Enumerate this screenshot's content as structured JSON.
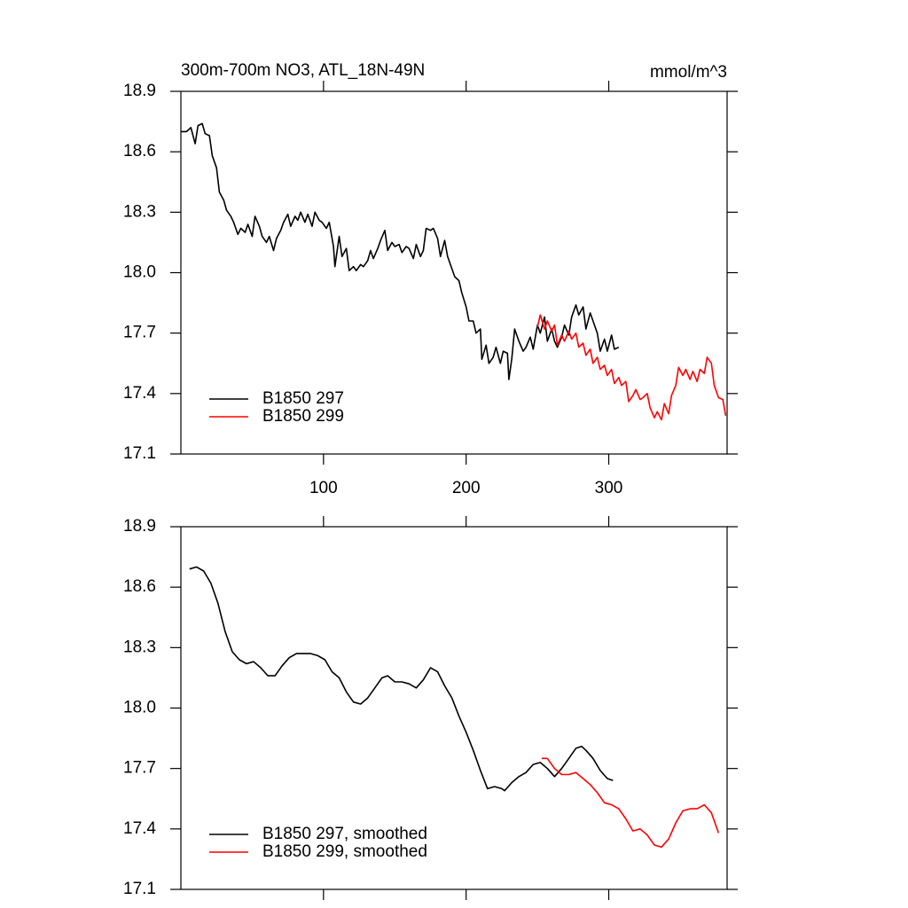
{
  "chart_data": [
    {
      "type": "line",
      "title": "300m-700m NO3, ATL_18N-49N",
      "units": "mmol/m^3",
      "xlim": [
        0,
        383
      ],
      "xticks": [
        100,
        200,
        300
      ],
      "ylim": [
        17.1,
        18.9
      ],
      "yticks": [
        17.1,
        17.4,
        17.7,
        {
          "value": 18,
          "label": "18.0"
        },
        18.3,
        18.6,
        18.9
      ],
      "legend": "bottom-left",
      "series": [
        {
          "name": "B1850 297",
          "color": "#000000",
          "x": [
            0,
            4,
            7,
            10,
            12,
            15,
            17,
            20,
            22,
            25,
            27,
            30,
            32,
            35,
            37,
            40,
            42,
            45,
            47,
            50,
            52,
            55,
            57,
            60,
            62,
            65,
            67,
            70,
            72,
            75,
            77,
            80,
            82,
            84,
            87,
            89,
            92,
            94,
            97,
            99,
            102,
            104,
            107,
            108,
            111,
            113,
            116,
            118,
            121,
            123,
            126,
            128,
            131,
            133,
            135,
            138,
            140,
            143,
            145,
            148,
            150,
            153,
            155,
            158,
            160,
            163,
            165,
            168,
            170,
            172,
            175,
            177,
            180,
            182,
            185,
            187,
            190,
            192,
            195,
            197,
            200,
            202,
            205,
            207,
            210,
            211,
            214,
            216,
            219,
            221,
            224,
            226,
            229,
            230,
            232,
            234,
            237,
            240,
            242,
            245,
            247,
            250,
            252,
            255,
            257,
            260,
            262,
            264,
            267,
            269,
            272,
            274,
            277,
            279,
            282,
            284,
            287,
            289,
            292,
            294,
            297,
            299,
            302,
            304,
            307
          ],
          "values": [
            18.7,
            18.7,
            18.72,
            18.64,
            18.73,
            18.74,
            18.69,
            18.68,
            18.58,
            18.52,
            18.4,
            18.36,
            18.31,
            18.28,
            18.25,
            18.19,
            18.22,
            18.2,
            18.24,
            18.18,
            18.28,
            18.23,
            18.18,
            18.15,
            18.18,
            18.11,
            18.17,
            18.21,
            18.25,
            18.29,
            18.23,
            18.28,
            18.26,
            18.3,
            18.25,
            18.29,
            18.23,
            18.3,
            18.26,
            18.25,
            18.22,
            18.25,
            18.13,
            18.03,
            18.18,
            18.08,
            18.12,
            18.01,
            18.03,
            18.01,
            18.04,
            18.03,
            18.06,
            18.11,
            18.07,
            18.12,
            18.16,
            18.21,
            18.11,
            18.15,
            18.13,
            18.14,
            18.1,
            18.13,
            18.12,
            18.07,
            18.14,
            18.08,
            18.11,
            18.22,
            18.21,
            18.22,
            18.17,
            18.08,
            18.16,
            18.08,
            18.02,
            17.98,
            17.96,
            17.9,
            17.83,
            17.76,
            17.76,
            17.7,
            17.72,
            17.57,
            17.64,
            17.55,
            17.58,
            17.63,
            17.55,
            17.61,
            17.6,
            17.47,
            17.57,
            17.72,
            17.66,
            17.61,
            17.63,
            17.68,
            17.62,
            17.74,
            17.7,
            17.78,
            17.66,
            17.72,
            17.66,
            17.63,
            17.68,
            17.74,
            17.69,
            17.78,
            17.84,
            17.79,
            17.83,
            17.72,
            17.8,
            17.76,
            17.7,
            17.61,
            17.67,
            17.61,
            17.69,
            17.62,
            17.63
          ]
        },
        {
          "name": "B1850 299",
          "color": "#ff0000",
          "x": [
            250,
            252,
            255,
            257,
            260,
            262,
            264,
            267,
            269,
            272,
            274,
            277,
            279,
            282,
            284,
            287,
            289,
            292,
            294,
            297,
            299,
            302,
            304,
            307,
            309,
            312,
            314,
            317,
            319,
            322,
            324,
            327,
            329,
            332,
            334,
            337,
            339,
            342,
            344,
            347,
            349,
            352,
            354,
            357,
            359,
            362,
            364,
            367,
            369,
            372,
            374,
            377,
            380,
            382
          ],
          "values": [
            17.73,
            17.79,
            17.72,
            17.76,
            17.71,
            17.74,
            17.64,
            17.69,
            17.66,
            17.71,
            17.67,
            17.7,
            17.63,
            17.65,
            17.59,
            17.62,
            17.55,
            17.58,
            17.52,
            17.54,
            17.49,
            17.52,
            17.45,
            17.48,
            17.44,
            17.46,
            17.36,
            17.39,
            17.42,
            17.37,
            17.38,
            17.4,
            17.33,
            17.28,
            17.31,
            17.27,
            17.35,
            17.3,
            17.39,
            17.44,
            17.53,
            17.49,
            17.52,
            17.47,
            17.51,
            17.46,
            17.52,
            17.5,
            17.58,
            17.55,
            17.44,
            17.38,
            17.37,
            17.29
          ]
        }
      ]
    },
    {
      "type": "line",
      "xlim": [
        0,
        383
      ],
      "ylim": [
        17.1,
        18.9
      ],
      "yticks": [
        17.1,
        17.4,
        17.7,
        {
          "value": 18,
          "label": "18.0"
        },
        18.3,
        18.6,
        18.9
      ],
      "legend": "bottom-left",
      "series": [
        {
          "name": "B1850 297, smoothed",
          "color": "#000000",
          "x": [
            6,
            11,
            16,
            21,
            26,
            31,
            36,
            41,
            46,
            51,
            56,
            61,
            66,
            71,
            76,
            81,
            86,
            91,
            96,
            101,
            106,
            111,
            116,
            121,
            126,
            131,
            136,
            141,
            145,
            150,
            155,
            160,
            165,
            170,
            175,
            180,
            185,
            190,
            195,
            200,
            205,
            210,
            215,
            220,
            225,
            227,
            232,
            237,
            242,
            247,
            252,
            257,
            262,
            267,
            272,
            277,
            281,
            284,
            289,
            294,
            299,
            303
          ],
          "values": [
            18.69,
            18.7,
            18.68,
            18.62,
            18.52,
            18.38,
            18.28,
            18.24,
            18.22,
            18.23,
            18.2,
            18.16,
            18.16,
            18.21,
            18.25,
            18.27,
            18.27,
            18.27,
            18.26,
            18.24,
            18.18,
            18.15,
            18.08,
            18.03,
            18.02,
            18.05,
            18.1,
            18.15,
            18.16,
            18.13,
            18.13,
            18.12,
            18.1,
            18.14,
            18.2,
            18.18,
            18.11,
            18.05,
            17.96,
            17.88,
            17.79,
            17.69,
            17.6,
            17.61,
            17.6,
            17.59,
            17.63,
            17.66,
            17.68,
            17.72,
            17.73,
            17.7,
            17.66,
            17.7,
            17.75,
            17.8,
            17.81,
            17.79,
            17.75,
            17.69,
            17.65,
            17.64
          ]
        },
        {
          "name": "B1850 299, smoothed",
          "color": "#ff0000",
          "x": [
            253,
            257,
            262,
            267,
            272,
            277,
            282,
            287,
            292,
            297,
            302,
            307,
            312,
            317,
            322,
            327,
            332,
            337,
            342,
            347,
            352,
            357,
            362,
            367,
            372,
            377
          ],
          "values": [
            17.75,
            17.75,
            17.7,
            17.67,
            17.67,
            17.68,
            17.65,
            17.62,
            17.58,
            17.53,
            17.52,
            17.5,
            17.45,
            17.39,
            17.4,
            17.37,
            17.32,
            17.31,
            17.35,
            17.43,
            17.49,
            17.5,
            17.5,
            17.52,
            17.48,
            17.38
          ]
        }
      ]
    }
  ]
}
